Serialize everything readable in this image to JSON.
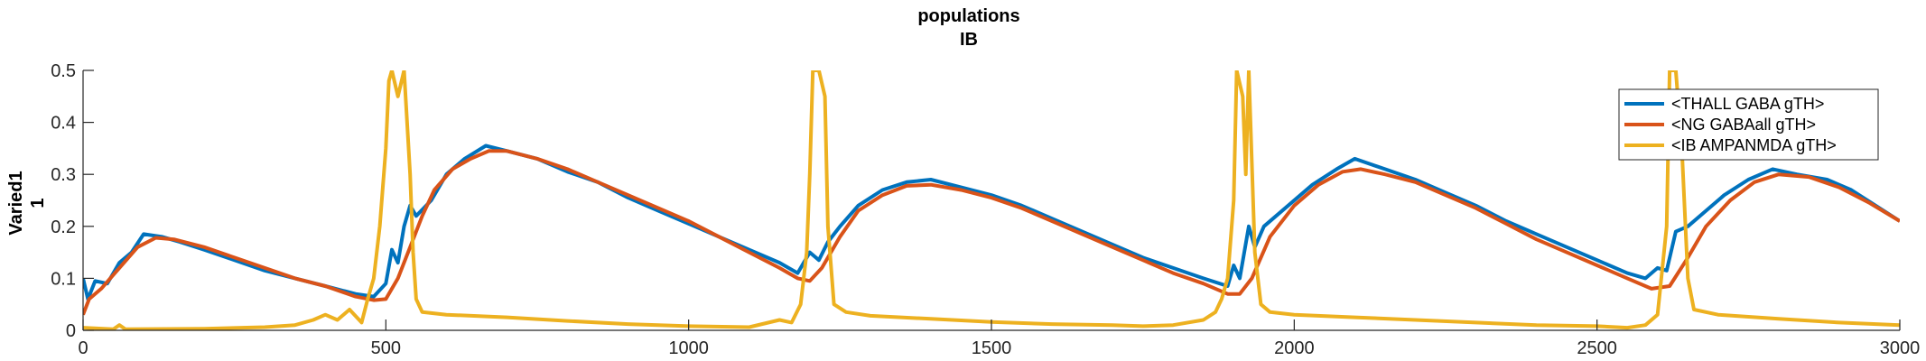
{
  "chart_data": {
    "type": "line",
    "title": [
      "populations",
      "IB"
    ],
    "ylabel": [
      "Varied1",
      "1"
    ],
    "xlabel": "",
    "xlim": [
      0,
      3000
    ],
    "ylim": [
      0,
      0.5
    ],
    "xticks": [
      0,
      500,
      1000,
      1500,
      2000,
      2500,
      3000
    ],
    "yticks": [
      0,
      0.1,
      0.2,
      0.3,
      0.4,
      0.5
    ],
    "grid": false,
    "legend_position": "top-right",
    "series": [
      {
        "name": "<THALL GABA gTH>",
        "color": "#0072BD",
        "points": [
          [
            0,
            0.1
          ],
          [
            8,
            0.06
          ],
          [
            20,
            0.095
          ],
          [
            40,
            0.09
          ],
          [
            60,
            0.13
          ],
          [
            80,
            0.15
          ],
          [
            100,
            0.185
          ],
          [
            130,
            0.18
          ],
          [
            160,
            0.17
          ],
          [
            200,
            0.155
          ],
          [
            250,
            0.135
          ],
          [
            300,
            0.115
          ],
          [
            350,
            0.1
          ],
          [
            400,
            0.085
          ],
          [
            450,
            0.07
          ],
          [
            480,
            0.065
          ],
          [
            500,
            0.09
          ],
          [
            510,
            0.155
          ],
          [
            520,
            0.13
          ],
          [
            530,
            0.2
          ],
          [
            540,
            0.24
          ],
          [
            550,
            0.22
          ],
          [
            575,
            0.25
          ],
          [
            600,
            0.3
          ],
          [
            630,
            0.33
          ],
          [
            665,
            0.355
          ],
          [
            700,
            0.345
          ],
          [
            750,
            0.33
          ],
          [
            800,
            0.305
          ],
          [
            850,
            0.285
          ],
          [
            900,
            0.255
          ],
          [
            950,
            0.23
          ],
          [
            1000,
            0.205
          ],
          [
            1050,
            0.18
          ],
          [
            1100,
            0.155
          ],
          [
            1150,
            0.13
          ],
          [
            1180,
            0.11
          ],
          [
            1200,
            0.15
          ],
          [
            1215,
            0.135
          ],
          [
            1230,
            0.17
          ],
          [
            1250,
            0.2
          ],
          [
            1280,
            0.24
          ],
          [
            1320,
            0.27
          ],
          [
            1360,
            0.285
          ],
          [
            1400,
            0.29
          ],
          [
            1450,
            0.275
          ],
          [
            1500,
            0.26
          ],
          [
            1550,
            0.24
          ],
          [
            1600,
            0.215
          ],
          [
            1650,
            0.19
          ],
          [
            1700,
            0.165
          ],
          [
            1750,
            0.14
          ],
          [
            1800,
            0.12
          ],
          [
            1850,
            0.1
          ],
          [
            1890,
            0.085
          ],
          [
            1900,
            0.125
          ],
          [
            1910,
            0.1
          ],
          [
            1925,
            0.2
          ],
          [
            1935,
            0.16
          ],
          [
            1950,
            0.2
          ],
          [
            1990,
            0.24
          ],
          [
            2030,
            0.28
          ],
          [
            2070,
            0.31
          ],
          [
            2100,
            0.33
          ],
          [
            2150,
            0.31
          ],
          [
            2200,
            0.29
          ],
          [
            2250,
            0.265
          ],
          [
            2300,
            0.24
          ],
          [
            2350,
            0.21
          ],
          [
            2400,
            0.185
          ],
          [
            2450,
            0.16
          ],
          [
            2500,
            0.135
          ],
          [
            2550,
            0.11
          ],
          [
            2580,
            0.1
          ],
          [
            2600,
            0.12
          ],
          [
            2615,
            0.115
          ],
          [
            2630,
            0.19
          ],
          [
            2650,
            0.2
          ],
          [
            2680,
            0.23
          ],
          [
            2710,
            0.26
          ],
          [
            2750,
            0.29
          ],
          [
            2790,
            0.31
          ],
          [
            2830,
            0.3
          ],
          [
            2880,
            0.29
          ],
          [
            2920,
            0.27
          ],
          [
            2960,
            0.24
          ],
          [
            3000,
            0.21
          ]
        ]
      },
      {
        "name": "<NG GABAall gTH>",
        "color": "#D95319",
        "points": [
          [
            0,
            0.03
          ],
          [
            10,
            0.06
          ],
          [
            30,
            0.08
          ],
          [
            60,
            0.12
          ],
          [
            90,
            0.16
          ],
          [
            120,
            0.178
          ],
          [
            150,
            0.175
          ],
          [
            200,
            0.16
          ],
          [
            250,
            0.14
          ],
          [
            300,
            0.12
          ],
          [
            350,
            0.1
          ],
          [
            400,
            0.085
          ],
          [
            450,
            0.065
          ],
          [
            480,
            0.058
          ],
          [
            500,
            0.06
          ],
          [
            520,
            0.1
          ],
          [
            540,
            0.16
          ],
          [
            560,
            0.22
          ],
          [
            580,
            0.27
          ],
          [
            610,
            0.31
          ],
          [
            640,
            0.33
          ],
          [
            670,
            0.345
          ],
          [
            700,
            0.345
          ],
          [
            750,
            0.33
          ],
          [
            800,
            0.31
          ],
          [
            850,
            0.285
          ],
          [
            900,
            0.26
          ],
          [
            950,
            0.235
          ],
          [
            1000,
            0.21
          ],
          [
            1050,
            0.18
          ],
          [
            1100,
            0.15
          ],
          [
            1150,
            0.12
          ],
          [
            1180,
            0.1
          ],
          [
            1200,
            0.095
          ],
          [
            1220,
            0.12
          ],
          [
            1250,
            0.18
          ],
          [
            1280,
            0.23
          ],
          [
            1320,
            0.26
          ],
          [
            1360,
            0.278
          ],
          [
            1400,
            0.28
          ],
          [
            1450,
            0.27
          ],
          [
            1500,
            0.255
          ],
          [
            1550,
            0.235
          ],
          [
            1600,
            0.21
          ],
          [
            1650,
            0.185
          ],
          [
            1700,
            0.16
          ],
          [
            1750,
            0.135
          ],
          [
            1800,
            0.11
          ],
          [
            1850,
            0.09
          ],
          [
            1890,
            0.07
          ],
          [
            1910,
            0.07
          ],
          [
            1930,
            0.1
          ],
          [
            1960,
            0.18
          ],
          [
            2000,
            0.24
          ],
          [
            2040,
            0.28
          ],
          [
            2080,
            0.305
          ],
          [
            2110,
            0.31
          ],
          [
            2150,
            0.3
          ],
          [
            2200,
            0.285
          ],
          [
            2250,
            0.26
          ],
          [
            2300,
            0.235
          ],
          [
            2350,
            0.205
          ],
          [
            2400,
            0.175
          ],
          [
            2450,
            0.15
          ],
          [
            2500,
            0.125
          ],
          [
            2550,
            0.1
          ],
          [
            2590,
            0.08
          ],
          [
            2620,
            0.085
          ],
          [
            2650,
            0.14
          ],
          [
            2680,
            0.2
          ],
          [
            2720,
            0.25
          ],
          [
            2760,
            0.285
          ],
          [
            2800,
            0.3
          ],
          [
            2850,
            0.295
          ],
          [
            2900,
            0.275
          ],
          [
            2950,
            0.245
          ],
          [
            3000,
            0.21
          ]
        ]
      },
      {
        "name": "<IB AMPANMDA gTH>",
        "color": "#EDB120",
        "points": [
          [
            0,
            0.005
          ],
          [
            50,
            0.002
          ],
          [
            60,
            0.01
          ],
          [
            70,
            0.002
          ],
          [
            200,
            0.003
          ],
          [
            300,
            0.006
          ],
          [
            350,
            0.01
          ],
          [
            380,
            0.02
          ],
          [
            400,
            0.03
          ],
          [
            420,
            0.02
          ],
          [
            440,
            0.04
          ],
          [
            460,
            0.015
          ],
          [
            470,
            0.06
          ],
          [
            480,
            0.1
          ],
          [
            490,
            0.2
          ],
          [
            500,
            0.35
          ],
          [
            505,
            0.48
          ],
          [
            510,
            0.5
          ],
          [
            520,
            0.45
          ],
          [
            530,
            0.5
          ],
          [
            540,
            0.3
          ],
          [
            545,
            0.15
          ],
          [
            550,
            0.06
          ],
          [
            560,
            0.035
          ],
          [
            600,
            0.03
          ],
          [
            700,
            0.025
          ],
          [
            800,
            0.018
          ],
          [
            900,
            0.012
          ],
          [
            1000,
            0.008
          ],
          [
            1100,
            0.006
          ],
          [
            1150,
            0.02
          ],
          [
            1170,
            0.015
          ],
          [
            1185,
            0.05
          ],
          [
            1195,
            0.15
          ],
          [
            1200,
            0.3
          ],
          [
            1205,
            0.5
          ],
          [
            1215,
            0.5
          ],
          [
            1225,
            0.45
          ],
          [
            1230,
            0.2
          ],
          [
            1240,
            0.05
          ],
          [
            1260,
            0.035
          ],
          [
            1300,
            0.028
          ],
          [
            1400,
            0.022
          ],
          [
            1500,
            0.016
          ],
          [
            1600,
            0.012
          ],
          [
            1700,
            0.01
          ],
          [
            1750,
            0.008
          ],
          [
            1800,
            0.01
          ],
          [
            1850,
            0.02
          ],
          [
            1870,
            0.035
          ],
          [
            1880,
            0.06
          ],
          [
            1890,
            0.1
          ],
          [
            1900,
            0.25
          ],
          [
            1905,
            0.5
          ],
          [
            1915,
            0.45
          ],
          [
            1920,
            0.3
          ],
          [
            1925,
            0.5
          ],
          [
            1935,
            0.15
          ],
          [
            1945,
            0.05
          ],
          [
            1960,
            0.035
          ],
          [
            2000,
            0.03
          ],
          [
            2100,
            0.025
          ],
          [
            2200,
            0.02
          ],
          [
            2300,
            0.015
          ],
          [
            2400,
            0.01
          ],
          [
            2500,
            0.008
          ],
          [
            2550,
            0.005
          ],
          [
            2580,
            0.01
          ],
          [
            2600,
            0.03
          ],
          [
            2615,
            0.2
          ],
          [
            2620,
            0.5
          ],
          [
            2630,
            0.5
          ],
          [
            2640,
            0.35
          ],
          [
            2650,
            0.1
          ],
          [
            2660,
            0.04
          ],
          [
            2700,
            0.03
          ],
          [
            2800,
            0.022
          ],
          [
            2900,
            0.015
          ],
          [
            3000,
            0.01
          ]
        ]
      }
    ]
  }
}
